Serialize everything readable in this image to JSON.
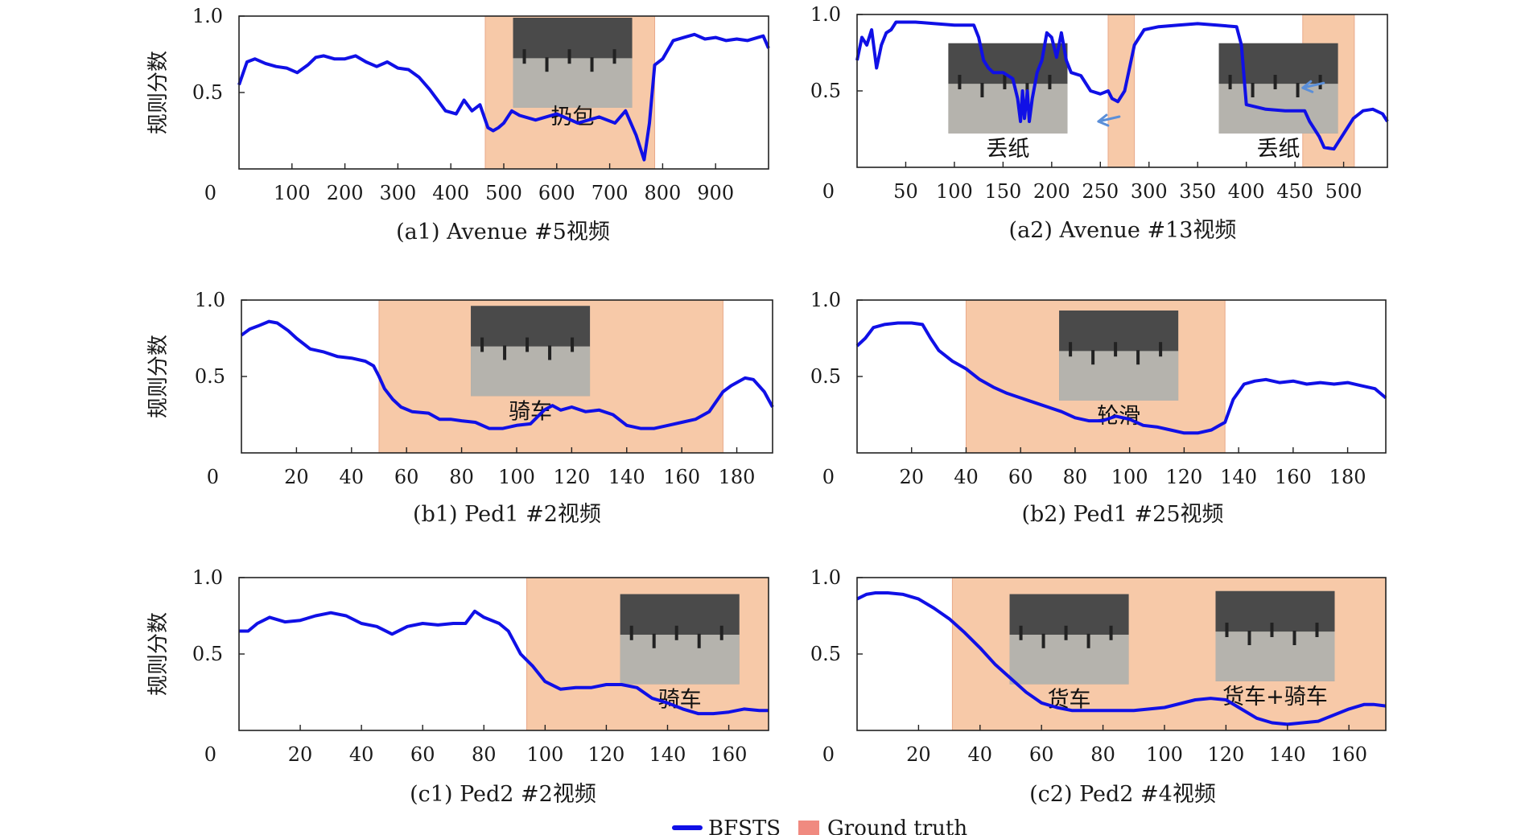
{
  "colors": {
    "series": "#1010e6",
    "ground_truth_fill": "#f7c9a8",
    "ground_truth_legend": "#f08a80",
    "arrow": "#5b8fd8"
  },
  "legend": {
    "series_label": "BFSTS",
    "gt_label": "Ground truth"
  },
  "chart_data": [
    {
      "type": "line",
      "caption": "(a1) Avenue #5视频",
      "ylabel": "规则分数",
      "xlim": [
        0,
        1000
      ],
      "ylim": [
        0,
        1.0
      ],
      "xticks": [
        "100",
        "200",
        "300",
        "400",
        "500",
        "600",
        "700",
        "800",
        "900"
      ],
      "yticks": [
        "0",
        "0.5",
        "1.0"
      ],
      "ground_truth": [
        [
          465,
          785
        ]
      ],
      "annotations": [
        {
          "text": "扔包",
          "x": 630,
          "y": 0.4,
          "thumb": true
        }
      ],
      "series": [
        {
          "x": [
            0,
            15,
            30,
            50,
            70,
            90,
            110,
            130,
            145,
            160,
            180,
            200,
            220,
            240,
            260,
            280,
            300,
            320,
            340,
            360,
            375,
            390,
            410,
            425,
            440,
            455,
            470,
            480,
            490,
            500,
            515,
            530,
            560,
            600,
            640,
            680,
            710,
            730,
            750,
            765,
            775,
            785,
            800,
            820,
            840,
            860,
            880,
            900,
            920,
            940,
            960,
            980,
            990,
            1000
          ],
          "y": [
            0.55,
            0.7,
            0.72,
            0.69,
            0.67,
            0.66,
            0.63,
            0.68,
            0.73,
            0.74,
            0.72,
            0.72,
            0.74,
            0.7,
            0.67,
            0.7,
            0.66,
            0.65,
            0.6,
            0.52,
            0.45,
            0.38,
            0.36,
            0.45,
            0.38,
            0.42,
            0.27,
            0.25,
            0.27,
            0.3,
            0.38,
            0.35,
            0.32,
            0.36,
            0.3,
            0.34,
            0.3,
            0.38,
            0.22,
            0.06,
            0.3,
            0.68,
            0.72,
            0.84,
            0.86,
            0.88,
            0.85,
            0.86,
            0.84,
            0.85,
            0.84,
            0.86,
            0.87,
            0.79
          ]
        }
      ]
    },
    {
      "type": "line",
      "caption": "(a2) Avenue #13视频",
      "ylabel": "",
      "xlim": [
        0,
        545
      ],
      "ylim": [
        0,
        1.0
      ],
      "xticks": [
        "50",
        "100",
        "150",
        "200",
        "250",
        "300",
        "350",
        "400",
        "450",
        "500"
      ],
      "yticks": [
        "0",
        "0.5",
        "1.0"
      ],
      "ground_truth": [
        [
          258,
          285
        ],
        [
          458,
          511
        ]
      ],
      "annotations": [
        {
          "text": "丢纸",
          "x": 155,
          "y": 0.18,
          "thumb": true
        },
        {
          "text": "丢纸",
          "x": 433,
          "y": 0.18,
          "thumb": true
        }
      ],
      "arrows": [
        {
          "x": 248,
          "y": 0.3
        },
        {
          "x": 458,
          "y": 0.52
        }
      ],
      "series": [
        {
          "x": [
            0,
            5,
            10,
            15,
            20,
            25,
            30,
            35,
            40,
            60,
            80,
            100,
            120,
            125,
            130,
            135,
            140,
            150,
            160,
            165,
            168,
            170,
            172,
            175,
            177,
            180,
            185,
            190,
            195,
            200,
            205,
            210,
            215,
            220,
            230,
            240,
            250,
            258,
            262,
            268,
            275,
            285,
            295,
            310,
            330,
            350,
            370,
            390,
            395,
            400,
            420,
            440,
            460,
            465,
            475,
            480,
            490,
            500,
            510,
            520,
            530,
            540,
            545
          ],
          "y": [
            0.7,
            0.85,
            0.8,
            0.9,
            0.65,
            0.8,
            0.88,
            0.9,
            0.95,
            0.95,
            0.94,
            0.93,
            0.93,
            0.85,
            0.7,
            0.65,
            0.62,
            0.62,
            0.58,
            0.45,
            0.3,
            0.5,
            0.32,
            0.5,
            0.3,
            0.45,
            0.62,
            0.7,
            0.88,
            0.85,
            0.72,
            0.88,
            0.7,
            0.62,
            0.6,
            0.5,
            0.48,
            0.5,
            0.45,
            0.43,
            0.5,
            0.8,
            0.9,
            0.92,
            0.93,
            0.94,
            0.93,
            0.92,
            0.8,
            0.41,
            0.38,
            0.37,
            0.37,
            0.3,
            0.2,
            0.13,
            0.12,
            0.22,
            0.32,
            0.37,
            0.38,
            0.35,
            0.3
          ]
        }
      ]
    },
    {
      "type": "line",
      "caption": "(b1) Ped1 #2视频",
      "ylabel": "规则分数",
      "xlim": [
        0,
        193
      ],
      "ylim": [
        0,
        1.0
      ],
      "xticks": [
        "20",
        "40",
        "60",
        "80",
        "100",
        "120",
        "140",
        "160",
        "180"
      ],
      "yticks": [
        "0",
        "0.5",
        "1.0"
      ],
      "ground_truth": [
        [
          50,
          175
        ]
      ],
      "annotations": [
        {
          "text": "骑车",
          "x": 105,
          "y": 0.33,
          "thumb": true
        }
      ],
      "series": [
        {
          "x": [
            0,
            3,
            6,
            10,
            13,
            17,
            20,
            25,
            30,
            35,
            40,
            45,
            48,
            50,
            52,
            55,
            58,
            62,
            68,
            72,
            76,
            80,
            85,
            90,
            95,
            100,
            105,
            110,
            113,
            116,
            120,
            125,
            130,
            135,
            140,
            145,
            150,
            155,
            160,
            165,
            170,
            175,
            178,
            183,
            186,
            190,
            193
          ],
          "y": [
            0.77,
            0.81,
            0.83,
            0.86,
            0.85,
            0.8,
            0.75,
            0.68,
            0.66,
            0.63,
            0.62,
            0.6,
            0.57,
            0.5,
            0.42,
            0.35,
            0.3,
            0.27,
            0.26,
            0.22,
            0.22,
            0.21,
            0.2,
            0.16,
            0.16,
            0.18,
            0.19,
            0.28,
            0.31,
            0.28,
            0.3,
            0.27,
            0.28,
            0.25,
            0.18,
            0.16,
            0.16,
            0.18,
            0.2,
            0.22,
            0.27,
            0.4,
            0.44,
            0.49,
            0.48,
            0.4,
            0.3
          ]
        }
      ]
    },
    {
      "type": "line",
      "caption": "(b2) Ped1 #25视频",
      "ylabel": "",
      "xlim": [
        0,
        194
      ],
      "ylim": [
        0,
        1.0
      ],
      "xticks": [
        "20",
        "40",
        "60",
        "80",
        "100",
        "120",
        "140",
        "160",
        "180"
      ],
      "yticks": [
        "0",
        "0.5",
        "1.0"
      ],
      "ground_truth": [
        [
          40,
          135
        ]
      ],
      "annotations": [
        {
          "text": "轮滑",
          "x": 96,
          "y": 0.3,
          "thumb": true
        }
      ],
      "series": [
        {
          "x": [
            0,
            3,
            6,
            10,
            15,
            20,
            24,
            27,
            30,
            35,
            40,
            45,
            50,
            55,
            60,
            65,
            70,
            75,
            80,
            85,
            90,
            95,
            100,
            105,
            110,
            115,
            120,
            125,
            130,
            133,
            135,
            138,
            142,
            146,
            150,
            155,
            160,
            165,
            170,
            175,
            180,
            185,
            190,
            194
          ],
          "y": [
            0.7,
            0.75,
            0.82,
            0.84,
            0.85,
            0.85,
            0.84,
            0.75,
            0.67,
            0.6,
            0.55,
            0.48,
            0.43,
            0.39,
            0.36,
            0.33,
            0.3,
            0.27,
            0.23,
            0.21,
            0.21,
            0.24,
            0.22,
            0.18,
            0.17,
            0.15,
            0.13,
            0.13,
            0.15,
            0.18,
            0.2,
            0.35,
            0.45,
            0.47,
            0.48,
            0.46,
            0.47,
            0.45,
            0.46,
            0.45,
            0.46,
            0.44,
            0.42,
            0.36
          ]
        }
      ]
    },
    {
      "type": "line",
      "caption": "(c1) Ped2 #2视频",
      "ylabel": "规则分数",
      "xlim": [
        0,
        173
      ],
      "ylim": [
        0,
        1.0
      ],
      "xticks": [
        "20",
        "40",
        "60",
        "80",
        "100",
        "120",
        "140",
        "160"
      ],
      "yticks": [
        "0",
        "0.5",
        "1.0"
      ],
      "ground_truth": [
        [
          94,
          173
        ]
      ],
      "annotations": [
        {
          "text": "骑车",
          "x": 144,
          "y": 0.26,
          "thumb": true
        }
      ],
      "series": [
        {
          "x": [
            0,
            3,
            6,
            10,
            15,
            20,
            25,
            30,
            35,
            40,
            45,
            50,
            55,
            60,
            65,
            70,
            74,
            77,
            80,
            85,
            88,
            92,
            96,
            100,
            105,
            110,
            115,
            120,
            125,
            130,
            135,
            140,
            145,
            150,
            155,
            160,
            165,
            170,
            173
          ],
          "y": [
            0.65,
            0.65,
            0.7,
            0.74,
            0.71,
            0.72,
            0.75,
            0.77,
            0.75,
            0.7,
            0.68,
            0.63,
            0.68,
            0.7,
            0.69,
            0.7,
            0.7,
            0.78,
            0.74,
            0.7,
            0.65,
            0.5,
            0.42,
            0.32,
            0.27,
            0.28,
            0.28,
            0.3,
            0.3,
            0.28,
            0.21,
            0.18,
            0.14,
            0.11,
            0.11,
            0.12,
            0.14,
            0.13,
            0.13
          ]
        }
      ]
    },
    {
      "type": "line",
      "caption": "(c2) Ped2 #4视频",
      "ylabel": "",
      "xlim": [
        0,
        172
      ],
      "ylim": [
        0,
        1.0
      ],
      "xticks": [
        "20",
        "40",
        "60",
        "80",
        "100",
        "120",
        "140",
        "160"
      ],
      "yticks": [
        "0",
        "0.5",
        "1.0"
      ],
      "ground_truth": [
        [
          31,
          172
        ]
      ],
      "annotations": [
        {
          "text": "货车",
          "x": 69,
          "y": 0.26,
          "thumb": true
        },
        {
          "text": "货车+骑车",
          "x": 136,
          "y": 0.28,
          "thumb": true
        }
      ],
      "series": [
        {
          "x": [
            0,
            3,
            6,
            10,
            15,
            20,
            25,
            30,
            35,
            40,
            45,
            50,
            55,
            60,
            65,
            70,
            75,
            80,
            90,
            100,
            110,
            115,
            120,
            125,
            130,
            135,
            140,
            145,
            150,
            155,
            160,
            165,
            168,
            172
          ],
          "y": [
            0.86,
            0.89,
            0.9,
            0.9,
            0.89,
            0.86,
            0.8,
            0.73,
            0.64,
            0.54,
            0.43,
            0.34,
            0.25,
            0.18,
            0.15,
            0.13,
            0.13,
            0.13,
            0.13,
            0.15,
            0.2,
            0.21,
            0.2,
            0.14,
            0.08,
            0.05,
            0.04,
            0.05,
            0.06,
            0.1,
            0.14,
            0.17,
            0.17,
            0.16
          ]
        }
      ]
    }
  ]
}
